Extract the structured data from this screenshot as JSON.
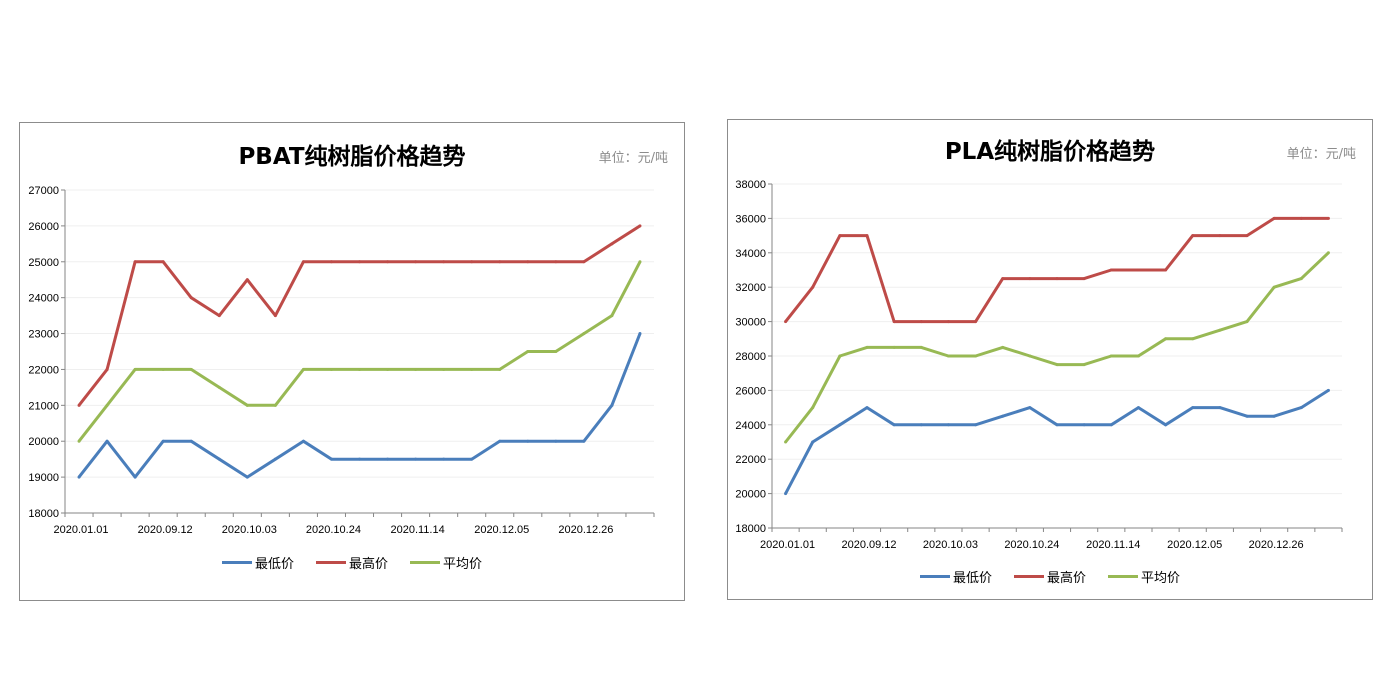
{
  "chart_data": [
    {
      "type": "line",
      "title": "PBAT纯树脂价格趋势",
      "unit_label": "单位：元/吨",
      "ylim": [
        18000,
        27000
      ],
      "yticks": [
        18000,
        19000,
        20000,
        21000,
        22000,
        23000,
        24000,
        25000,
        26000,
        27000
      ],
      "grid": true,
      "legend": "bottom",
      "categories": [
        "2020.01.01",
        "",
        "",
        "2020.09.12",
        "",
        "",
        "2020.10.03",
        "",
        "",
        "2020.10.24",
        "",
        "",
        "2020.11.14",
        "",
        "",
        "2020.12.05",
        "",
        "",
        "2020.12.26",
        "",
        ""
      ],
      "series": [
        {
          "name": "最低价",
          "color": "#4a7ebb",
          "values": [
            19000,
            20000,
            19000,
            20000,
            20000,
            19500,
            19000,
            19500,
            20000,
            19500,
            19500,
            19500,
            19500,
            19500,
            19500,
            20000,
            20000,
            20000,
            20000,
            21000,
            23000
          ]
        },
        {
          "name": "最高价",
          "color": "#be4b48",
          "values": [
            21000,
            22000,
            25000,
            25000,
            24000,
            23500,
            24500,
            23500,
            25000,
            25000,
            25000,
            25000,
            25000,
            25000,
            25000,
            25000,
            25000,
            25000,
            25000,
            25500,
            26000
          ]
        },
        {
          "name": "平均价",
          "color": "#98b954",
          "values": [
            20000,
            21000,
            22000,
            22000,
            22000,
            21500,
            21000,
            21000,
            22000,
            22000,
            22000,
            22000,
            22000,
            22000,
            22000,
            22000,
            22500,
            22500,
            23000,
            23500,
            25000
          ]
        }
      ]
    },
    {
      "type": "line",
      "title": "PLA纯树脂价格趋势",
      "unit_label": "单位：元/吨",
      "ylim": [
        18000,
        38000
      ],
      "yticks": [
        18000,
        20000,
        22000,
        24000,
        26000,
        28000,
        30000,
        32000,
        34000,
        36000,
        38000
      ],
      "grid": true,
      "legend": "bottom",
      "categories": [
        "2020.01.01",
        "",
        "",
        "2020.09.12",
        "",
        "",
        "2020.10.03",
        "",
        "",
        "2020.10.24",
        "",
        "",
        "2020.11.14",
        "",
        "",
        "2020.12.05",
        "",
        "",
        "2020.12.26",
        "",
        ""
      ],
      "series": [
        {
          "name": "最低价",
          "color": "#4a7ebb",
          "values": [
            20000,
            23000,
            24000,
            25000,
            24000,
            24000,
            24000,
            24000,
            24500,
            25000,
            24000,
            24000,
            24000,
            25000,
            24000,
            25000,
            25000,
            24500,
            24500,
            25000,
            26000
          ]
        },
        {
          "name": "最高价",
          "color": "#be4b48",
          "values": [
            30000,
            32000,
            35000,
            35000,
            30000,
            30000,
            30000,
            30000,
            32500,
            32500,
            32500,
            32500,
            33000,
            33000,
            33000,
            35000,
            35000,
            35000,
            36000,
            36000,
            36000
          ]
        },
        {
          "name": "平均价",
          "color": "#98b954",
          "values": [
            23000,
            25000,
            28000,
            28500,
            28500,
            28500,
            28000,
            28000,
            28500,
            28000,
            27500,
            27500,
            28000,
            28000,
            29000,
            29000,
            29500,
            30000,
            32000,
            32500,
            34000
          ]
        }
      ]
    }
  ]
}
